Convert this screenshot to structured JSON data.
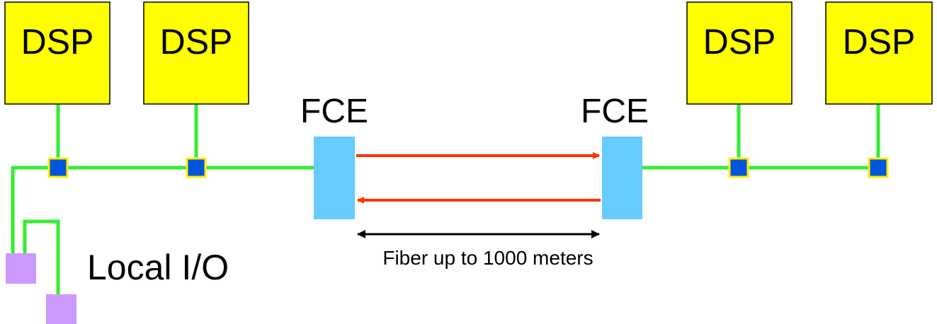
{
  "diagram": {
    "dsp_label": "DSP",
    "fce_label": "FCE",
    "local_io_label": "Local I/O",
    "fiber_label": "Fiber up to 1000 meters"
  },
  "colors": {
    "dsp_fill": "#ffff00",
    "dsp_stroke": "#000000",
    "bus_line": "#33ee33",
    "node_fill": "#0055dd",
    "node_border": "#ffee00",
    "fce_fill": "#66ccff",
    "fiber_arrow": "#ff3300",
    "distance_arrow": "#000000",
    "io_fill": "#cc99ff"
  }
}
